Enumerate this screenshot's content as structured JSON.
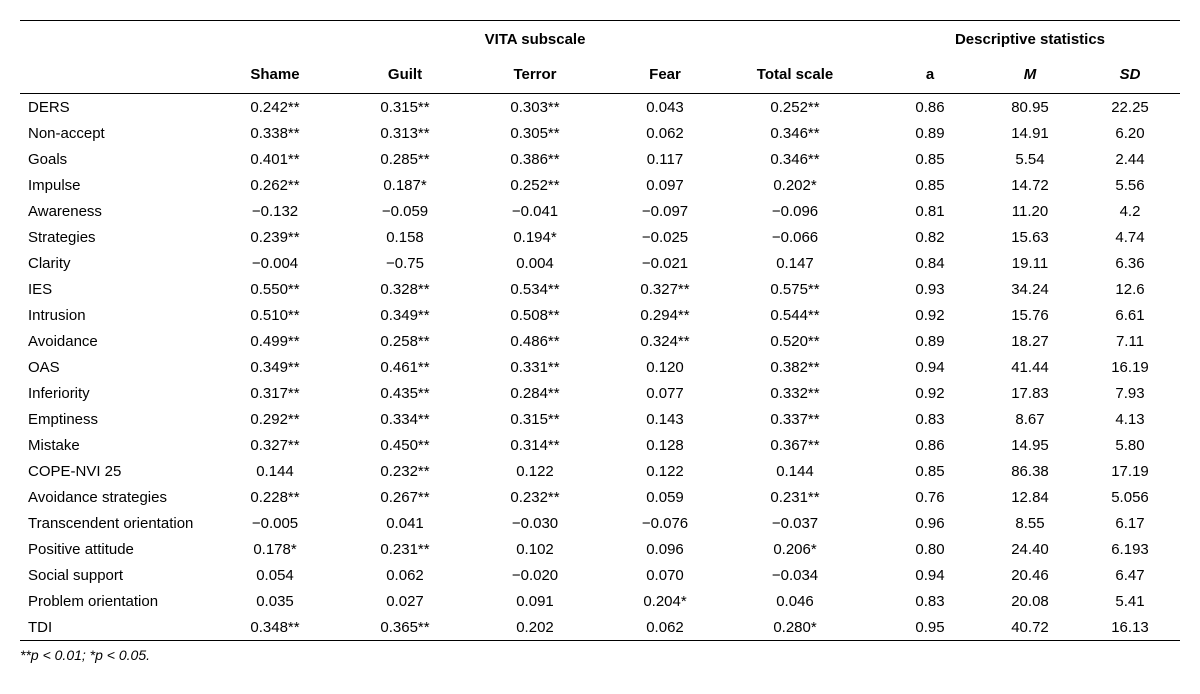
{
  "headers": {
    "group1": "VITA subscale",
    "group2": "Descriptive statistics",
    "cols": [
      "Shame",
      "Guilt",
      "Terror",
      "Fear",
      "Total scale",
      "a",
      "M",
      "SD"
    ]
  },
  "rows": [
    {
      "label": "DERS",
      "v": [
        "0.242**",
        "0.315**",
        "0.303**",
        "0.043",
        "0.252**",
        "0.86",
        "80.95",
        "22.25"
      ]
    },
    {
      "label": "Non-accept",
      "v": [
        "0.338**",
        "0.313**",
        "0.305**",
        "0.062",
        "0.346**",
        "0.89",
        "14.91",
        "6.20"
      ]
    },
    {
      "label": "Goals",
      "v": [
        "0.401**",
        "0.285**",
        "0.386**",
        "0.117",
        "0.346**",
        "0.85",
        "5.54",
        "2.44"
      ]
    },
    {
      "label": "Impulse",
      "v": [
        "0.262**",
        "0.187*",
        "0.252**",
        "0.097",
        "0.202*",
        "0.85",
        "14.72",
        "5.56"
      ]
    },
    {
      "label": "Awareness",
      "v": [
        "−0.132",
        "−0.059",
        "−0.041",
        "−0.097",
        "−0.096",
        "0.81",
        "11.20",
        "4.2"
      ]
    },
    {
      "label": "Strategies",
      "v": [
        "0.239**",
        "0.158",
        "0.194*",
        "−0.025",
        "−0.066",
        "0.82",
        "15.63",
        "4.74"
      ]
    },
    {
      "label": "Clarity",
      "v": [
        "−0.004",
        "−0.75",
        "0.004",
        "−0.021",
        "0.147",
        "0.84",
        "19.11",
        "6.36"
      ]
    },
    {
      "label": "IES",
      "v": [
        "0.550**",
        "0.328**",
        "0.534**",
        "0.327**",
        "0.575**",
        "0.93",
        "34.24",
        "12.6"
      ]
    },
    {
      "label": "Intrusion",
      "v": [
        "0.510**",
        "0.349**",
        "0.508**",
        "0.294**",
        "0.544**",
        "0.92",
        "15.76",
        "6.61"
      ]
    },
    {
      "label": "Avoidance",
      "v": [
        "0.499**",
        "0.258**",
        "0.486**",
        "0.324**",
        "0.520**",
        "0.89",
        "18.27",
        "7.11"
      ]
    },
    {
      "label": "OAS",
      "v": [
        "0.349**",
        "0.461**",
        "0.331**",
        "0.120",
        "0.382**",
        "0.94",
        "41.44",
        "16.19"
      ]
    },
    {
      "label": "Inferiority",
      "v": [
        "0.317**",
        "0.435**",
        "0.284**",
        "0.077",
        "0.332**",
        "0.92",
        "17.83",
        "7.93"
      ]
    },
    {
      "label": "Emptiness",
      "v": [
        "0.292**",
        "0.334**",
        "0.315**",
        "0.143",
        "0.337**",
        "0.83",
        "8.67",
        "4.13"
      ]
    },
    {
      "label": "Mistake",
      "v": [
        "0.327**",
        "0.450**",
        "0.314**",
        "0.128",
        "0.367**",
        "0.86",
        "14.95",
        "5.80"
      ]
    },
    {
      "label": "COPE-NVI 25",
      "v": [
        "0.144",
        "0.232**",
        "0.122",
        "0.122",
        "0.144",
        "0.85",
        "86.38",
        "17.19"
      ]
    },
    {
      "label": "Avoidance strategies",
      "v": [
        "0.228**",
        "0.267**",
        "0.232**",
        "0.059",
        "0.231**",
        "0.76",
        "12.84",
        "5.056"
      ]
    },
    {
      "label": "Transcendent orientation",
      "v": [
        "−0.005",
        "0.041",
        "−0.030",
        "−0.076",
        "−0.037",
        "0.96",
        "8.55",
        "6.17"
      ]
    },
    {
      "label": "Positive attitude",
      "v": [
        "0.178*",
        "0.231**",
        "0.102",
        "0.096",
        "0.206*",
        "0.80",
        "24.40",
        "6.193"
      ]
    },
    {
      "label": "Social support",
      "v": [
        "0.054",
        "0.062",
        "−0.020",
        "0.070",
        "−0.034",
        "0.94",
        "20.46",
        "6.47"
      ]
    },
    {
      "label": "Problem orientation",
      "v": [
        "0.035",
        "0.027",
        "0.091",
        "0.204*",
        "0.046",
        "0.83",
        "20.08",
        "5.41"
      ]
    },
    {
      "label": "TDI",
      "v": [
        "0.348**",
        "0.365**",
        "0.202",
        "0.062",
        "0.280*",
        "0.95",
        "40.72",
        "16.13"
      ]
    }
  ],
  "footnote": "**p < 0.01; *p < 0.05."
}
